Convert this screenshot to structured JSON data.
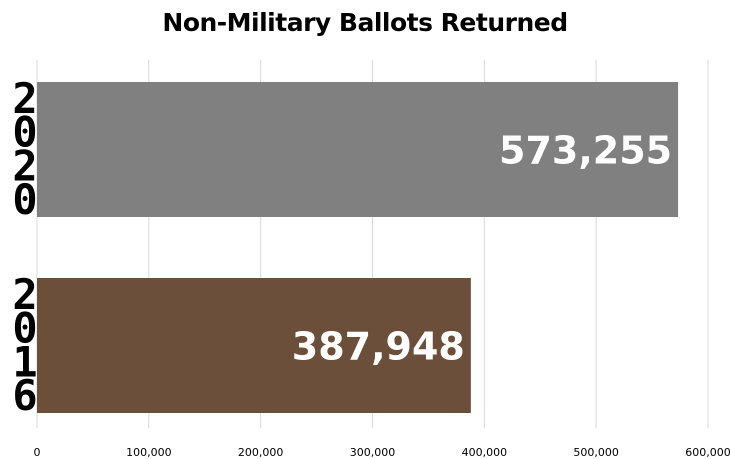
{
  "chart_data": {
    "type": "bar",
    "orientation": "horizontal",
    "title": "Non-Military Ballots Returned",
    "xlabel": "",
    "ylabel": "",
    "categories": [
      "2020",
      "2016"
    ],
    "values": [
      573255,
      387948
    ],
    "data_labels": [
      "573,255",
      "387,948"
    ],
    "colors": [
      "#808080",
      "#6b4f3a"
    ],
    "xlim": [
      0,
      600000
    ],
    "x_ticks": [
      0,
      100000,
      200000,
      300000,
      400000,
      500000,
      600000
    ],
    "x_tick_labels": [
      "0",
      "100,000",
      "200,000",
      "300,000",
      "400,000",
      "500,000",
      "600,000"
    ],
    "grid": true,
    "legend": "none"
  }
}
